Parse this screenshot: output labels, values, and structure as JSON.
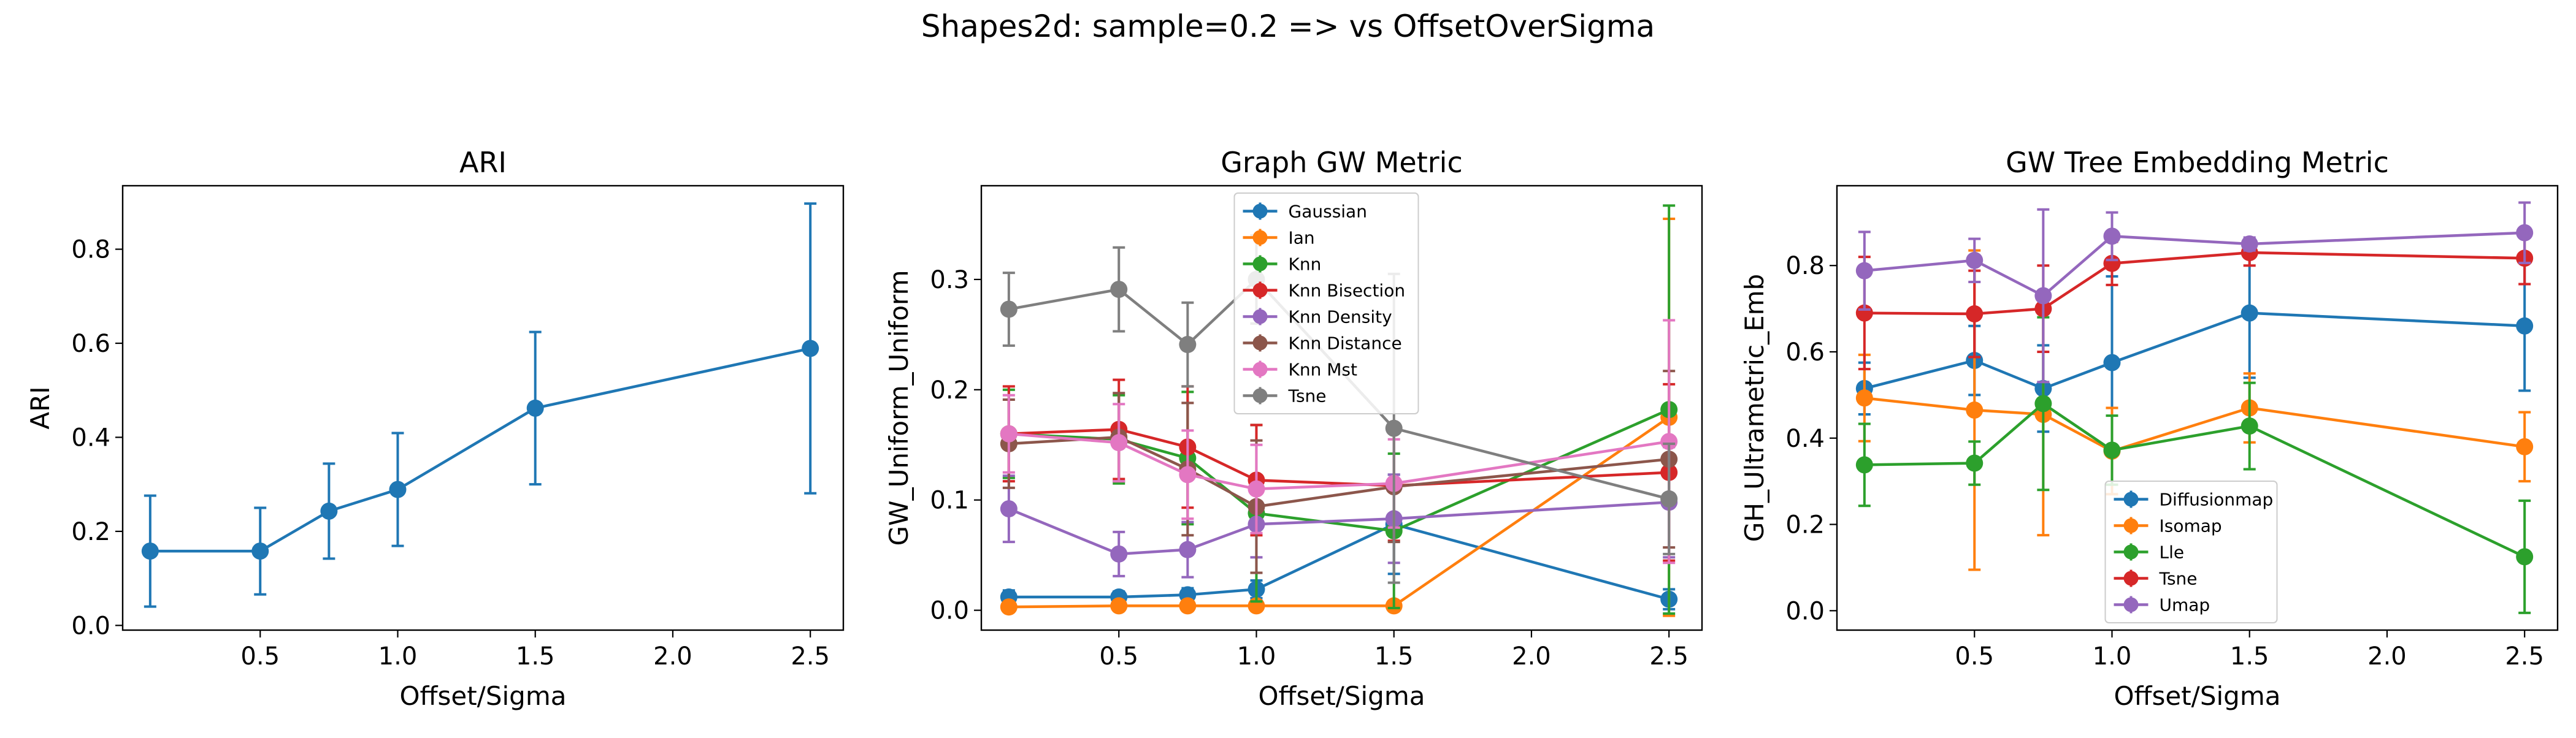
{
  "figure": {
    "suptitle": "Shapes2d: sample=0.2 => vs OffsetOverSigma"
  },
  "chart_data": [
    {
      "type": "line",
      "title": "ARI",
      "xlabel": "Offset/Sigma",
      "ylabel": "ARI",
      "xlim": [
        0.0,
        2.62
      ],
      "ylim": [
        -0.01,
        0.935
      ],
      "xticks": [
        0.5,
        1.0,
        1.5,
        2.0,
        2.5
      ],
      "xtick_labels": [
        "0.5",
        "1.0",
        "1.5",
        "2.0",
        "2.5"
      ],
      "yticks": [
        0.0,
        0.2,
        0.4,
        0.6,
        0.8
      ],
      "ytick_labels": [
        "0.0",
        "0.2",
        "0.4",
        "0.6",
        "0.8"
      ],
      "legend": null,
      "series": [
        {
          "color": "#1f77b4",
          "x": [
            0.1,
            0.5,
            0.75,
            1.0,
            1.5,
            2.5
          ],
          "y": [
            0.158,
            0.158,
            0.243,
            0.289,
            0.462,
            0.589
          ],
          "err": [
            0.118,
            0.092,
            0.101,
            0.12,
            0.162,
            0.308
          ]
        }
      ]
    },
    {
      "type": "line",
      "title": "Graph GW Metric",
      "xlabel": "Offset/Sigma",
      "ylabel": "GW_Uniform_Uniform",
      "xlim": [
        0.0,
        2.62
      ],
      "ylim": [
        -0.018,
        0.385
      ],
      "xticks": [
        0.5,
        1.0,
        1.5,
        2.0,
        2.5
      ],
      "xtick_labels": [
        "0.5",
        "1.0",
        "1.5",
        "2.0",
        "2.5"
      ],
      "yticks": [
        0.0,
        0.1,
        0.2,
        0.3
      ],
      "ytick_labels": [
        "0.0",
        "0.1",
        "0.2",
        "0.3"
      ],
      "legend": "upper-center",
      "series": [
        {
          "name": "Gaussian",
          "color": "#1f77b4",
          "x": [
            0.1,
            0.5,
            0.75,
            1.0,
            1.5,
            2.5
          ],
          "y": [
            0.012,
            0.012,
            0.014,
            0.019,
            0.078,
            0.01
          ],
          "err": [
            0.006,
            0.005,
            0.006,
            0.008,
            0.045,
            0.009
          ]
        },
        {
          "name": "Ian",
          "color": "#ff7f0e",
          "x": [
            0.1,
            0.5,
            0.75,
            1.0,
            1.5,
            2.5
          ],
          "y": [
            0.003,
            0.004,
            0.004,
            0.004,
            0.004,
            0.175
          ],
          "err": [
            0.003,
            0.003,
            0.003,
            0.003,
            0.003,
            0.18
          ]
        },
        {
          "name": "Knn",
          "color": "#2ca02c",
          "x": [
            0.1,
            0.5,
            0.75,
            1.0,
            1.5,
            2.5
          ],
          "y": [
            0.16,
            0.155,
            0.138,
            0.088,
            0.072,
            0.182
          ],
          "err": [
            0.04,
            0.04,
            0.06,
            0.08,
            0.07,
            0.185
          ]
        },
        {
          "name": "Knn Bisection",
          "color": "#d62728",
          "x": [
            0.1,
            0.5,
            0.75,
            1.0,
            1.5,
            2.5
          ],
          "y": [
            0.16,
            0.164,
            0.148,
            0.118,
            0.113,
            0.125
          ],
          "err": [
            0.043,
            0.045,
            0.055,
            0.05,
            0.05,
            0.08
          ]
        },
        {
          "name": "Knn Density",
          "color": "#9467bd",
          "x": [
            0.1,
            0.5,
            0.75,
            1.0,
            1.5,
            2.5
          ],
          "y": [
            0.092,
            0.051,
            0.055,
            0.078,
            0.083,
            0.098
          ],
          "err": [
            0.03,
            0.02,
            0.025,
            0.03,
            0.04,
            0.05
          ]
        },
        {
          "name": "Knn Distance",
          "color": "#8c564b",
          "x": [
            0.1,
            0.5,
            0.75,
            1.0,
            1.5,
            2.5
          ],
          "y": [
            0.151,
            0.157,
            0.128,
            0.094,
            0.112,
            0.137
          ],
          "err": [
            0.04,
            0.04,
            0.06,
            0.06,
            0.05,
            0.08
          ]
        },
        {
          "name": "Knn Mst",
          "color": "#e377c2",
          "x": [
            0.1,
            0.5,
            0.75,
            1.0,
            1.5,
            2.5
          ],
          "y": [
            0.16,
            0.152,
            0.123,
            0.11,
            0.115,
            0.153
          ],
          "err": [
            0.035,
            0.035,
            0.04,
            0.04,
            0.04,
            0.11
          ]
        },
        {
          "name": "Tsne",
          "color": "#7f7f7f",
          "x": [
            0.1,
            0.5,
            0.75,
            1.0,
            1.5,
            2.5
          ],
          "y": [
            0.273,
            0.291,
            0.241,
            0.3,
            0.165,
            0.101
          ],
          "err": [
            0.033,
            0.038,
            0.038,
            0.04,
            0.14,
            0.05
          ]
        }
      ]
    },
    {
      "type": "line",
      "title": "GW Tree Embedding Metric",
      "xlabel": "Offset/Sigma",
      "ylabel": "GH_Ultrametric_Emb",
      "xlim": [
        0.0,
        2.62
      ],
      "ylim": [
        -0.045,
        0.985
      ],
      "xticks": [
        0.5,
        1.0,
        1.5,
        2.0,
        2.5
      ],
      "xtick_labels": [
        "0.5",
        "1.0",
        "1.5",
        "2.0",
        "2.5"
      ],
      "yticks": [
        0.0,
        0.2,
        0.4,
        0.6,
        0.8
      ],
      "ytick_labels": [
        "0.0",
        "0.2",
        "0.4",
        "0.6",
        "0.8"
      ],
      "legend": "lower-center",
      "series": [
        {
          "name": "Diffusionmap",
          "color": "#1f77b4",
          "x": [
            0.1,
            0.5,
            0.75,
            1.0,
            1.5,
            2.5
          ],
          "y": [
            0.515,
            0.58,
            0.515,
            0.575,
            0.69,
            0.66
          ],
          "err": [
            0.06,
            0.08,
            0.1,
            0.2,
            0.15,
            0.15
          ]
        },
        {
          "name": "Isomap",
          "color": "#ff7f0e",
          "x": [
            0.1,
            0.5,
            0.75,
            1.0,
            1.5,
            2.5
          ],
          "y": [
            0.493,
            0.465,
            0.455,
            0.37,
            0.47,
            0.38
          ],
          "err": [
            0.1,
            0.37,
            0.28,
            0.1,
            0.08,
            0.08
          ]
        },
        {
          "name": "Lle",
          "color": "#2ca02c",
          "x": [
            0.1,
            0.5,
            0.75,
            1.0,
            1.5,
            2.5
          ],
          "y": [
            0.338,
            0.342,
            0.48,
            0.372,
            0.428,
            0.125
          ],
          "err": [
            0.095,
            0.05,
            0.2,
            0.08,
            0.1,
            0.13
          ]
        },
        {
          "name": "Tsne",
          "color": "#d62728",
          "x": [
            0.1,
            0.5,
            0.75,
            1.0,
            1.5,
            2.5
          ],
          "y": [
            0.69,
            0.688,
            0.7,
            0.805,
            0.83,
            0.817
          ],
          "err": [
            0.13,
            0.1,
            0.1,
            0.05,
            0.03,
            0.06
          ]
        },
        {
          "name": "Umap",
          "color": "#9467bd",
          "x": [
            0.1,
            0.5,
            0.75,
            1.0,
            1.5,
            2.5
          ],
          "y": [
            0.788,
            0.812,
            0.73,
            0.868,
            0.85,
            0.876
          ],
          "err": [
            0.09,
            0.05,
            0.2,
            0.055,
            0.015,
            0.07
          ]
        }
      ]
    }
  ]
}
